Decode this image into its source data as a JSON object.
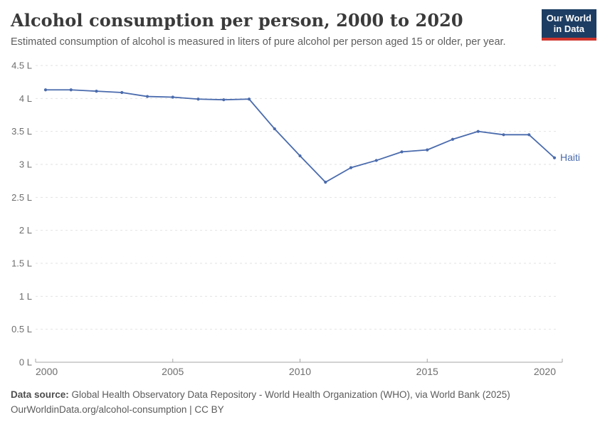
{
  "header": {
    "title": "Alcohol consumption per person, 2000 to 2020",
    "subtitle": "Estimated consumption of alcohol is measured in liters of pure alcohol per person aged 15 or older, per year.",
    "logo": {
      "line1": "Our World",
      "line2": "in Data"
    }
  },
  "chart_data": {
    "type": "line",
    "title": "Alcohol consumption per person, 2000 to 2020",
    "xlabel": "",
    "ylabel": "liters of pure alcohol per person",
    "x": [
      2000,
      2001,
      2002,
      2003,
      2004,
      2005,
      2006,
      2007,
      2008,
      2009,
      2010,
      2011,
      2012,
      2013,
      2014,
      2015,
      2016,
      2017,
      2018,
      2019,
      2020
    ],
    "series": [
      {
        "name": "Haiti",
        "color": "#4a6bad",
        "values": [
          4.13,
          4.13,
          4.11,
          4.09,
          4.03,
          4.02,
          3.99,
          3.98,
          3.99,
          3.54,
          3.13,
          2.73,
          2.95,
          3.06,
          3.19,
          3.22,
          3.38,
          3.5,
          3.45,
          3.45,
          3.1
        ]
      }
    ],
    "xlim": [
      2000,
      2020
    ],
    "ylim": [
      0,
      4.5
    ],
    "xticks": [
      2000,
      2005,
      2010,
      2015,
      2020
    ],
    "xtick_labels": [
      "2000",
      "2005",
      "2010",
      "2015",
      "2020"
    ],
    "yticks": [
      0,
      0.5,
      1,
      1.5,
      2,
      2.5,
      3,
      3.5,
      4,
      4.5
    ],
    "ytick_labels": [
      "0 L",
      "0.5 L",
      "1 L",
      "1.5 L",
      "2 L",
      "2.5 L",
      "3 L",
      "3.5 L",
      "4 L",
      "4.5 L"
    ],
    "grid": "horizontal-dashed",
    "legend_position": "line-end-label"
  },
  "footer": {
    "source_label": "Data source:",
    "source_text": " Global Health Observatory Data Repository - World Health Organization (WHO), via World Bank (2025)",
    "license_text": "OurWorldinData.org/alcohol-consumption | CC BY"
  },
  "colors": {
    "line": "#4a6bad",
    "grid": "#e2e2e2",
    "axis": "#a5a5a5",
    "tick_text": "#6e6e6e",
    "logo_bg": "#1d3d63",
    "logo_accent": "#cf342c"
  }
}
